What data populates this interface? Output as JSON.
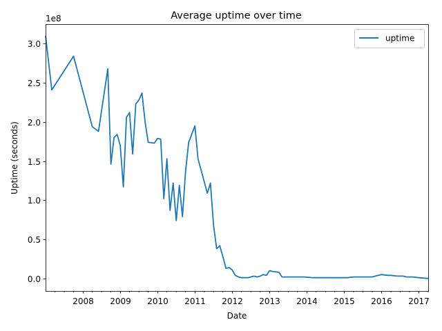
{
  "chart_data": {
    "type": "line",
    "title": "Average uptime over time",
    "xlabel": "Date",
    "ylabel": "Uptime (seconds)",
    "y_scale_label": "1e8",
    "xlim": [
      "2007-01",
      "2017-04"
    ],
    "ylim": [
      -0.16,
      3.25
    ],
    "y_unit_multiplier": 100000000,
    "x_ticks": [
      {
        "value": "2008-01",
        "label": "2008"
      },
      {
        "value": "2009-01",
        "label": "2009"
      },
      {
        "value": "2010-01",
        "label": "2010"
      },
      {
        "value": "2011-01",
        "label": "2011"
      },
      {
        "value": "2012-01",
        "label": "2012"
      },
      {
        "value": "2013-01",
        "label": "2013"
      },
      {
        "value": "2014-01",
        "label": "2014"
      },
      {
        "value": "2015-01",
        "label": "2015"
      },
      {
        "value": "2016-01",
        "label": "2016"
      },
      {
        "value": "2017-01",
        "label": "2017"
      }
    ],
    "y_ticks": [
      {
        "value": 0.0,
        "label": "0.0"
      },
      {
        "value": 0.5,
        "label": "0.5"
      },
      {
        "value": 1.0,
        "label": "1.0"
      },
      {
        "value": 1.5,
        "label": "1.5"
      },
      {
        "value": 2.0,
        "label": "2.0"
      },
      {
        "value": 2.5,
        "label": "2.5"
      },
      {
        "value": 3.0,
        "label": "3.0"
      }
    ],
    "grid": false,
    "legend_position": "top-right",
    "series": [
      {
        "name": "uptime",
        "color": "#1f77b4",
        "x": [
          "2007-01",
          "2007-03",
          "2007-10",
          "2008-04",
          "2008-06",
          "2008-09",
          "2008-10",
          "2008-11",
          "2008-12",
          "2009-01",
          "2009-02",
          "2009-03",
          "2009-04",
          "2009-05",
          "2009-06",
          "2009-07",
          "2009-08",
          "2009-09",
          "2009-10",
          "2009-12",
          "2010-01",
          "2010-02",
          "2010-03",
          "2010-04",
          "2010-05",
          "2010-06",
          "2010-07",
          "2010-08",
          "2010-09",
          "2010-10",
          "2010-11",
          "2011-01",
          "2011-02",
          "2011-05",
          "2011-06",
          "2011-07",
          "2011-08",
          "2011-09",
          "2011-10",
          "2011-11",
          "2011-12",
          "2012-01",
          "2012-02",
          "2012-03",
          "2012-04",
          "2012-05",
          "2012-06",
          "2012-07",
          "2012-08",
          "2012-09",
          "2012-10",
          "2012-11",
          "2012-12",
          "2013-01",
          "2013-02",
          "2013-04",
          "2013-05",
          "2013-06",
          "2013-08",
          "2013-10",
          "2013-12",
          "2014-03",
          "2014-06",
          "2014-09",
          "2014-12",
          "2015-02",
          "2015-04",
          "2015-06",
          "2015-08",
          "2015-10",
          "2015-12",
          "2016-01",
          "2016-03",
          "2016-04",
          "2016-06",
          "2016-08",
          "2016-09",
          "2016-11",
          "2017-01",
          "2017-04"
        ],
        "y": [
          3.1,
          2.41,
          2.84,
          1.94,
          1.88,
          2.68,
          1.46,
          1.8,
          1.84,
          1.7,
          1.17,
          2.06,
          2.12,
          1.59,
          2.23,
          2.28,
          2.37,
          2.0,
          1.74,
          1.73,
          1.79,
          1.78,
          1.02,
          1.53,
          0.87,
          1.22,
          0.74,
          1.19,
          0.79,
          1.37,
          1.74,
          1.95,
          1.53,
          1.09,
          1.22,
          0.68,
          0.38,
          0.42,
          0.28,
          0.13,
          0.14,
          0.11,
          0.04,
          0.02,
          0.01,
          0.01,
          0.01,
          0.02,
          0.03,
          0.02,
          0.03,
          0.05,
          0.04,
          0.1,
          0.09,
          0.08,
          0.02,
          0.02,
          0.02,
          0.02,
          0.02,
          0.01,
          0.01,
          0.01,
          0.01,
          0.01,
          0.02,
          0.02,
          0.02,
          0.02,
          0.04,
          0.05,
          0.04,
          0.04,
          0.03,
          0.03,
          0.02,
          0.02,
          0.01,
          0.0
        ]
      }
    ]
  }
}
